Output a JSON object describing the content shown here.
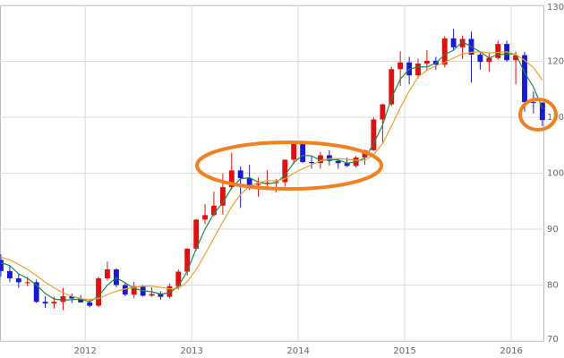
{
  "chart_data": {
    "type": "candlestick",
    "x": [
      2011.208,
      2011.292,
      2011.375,
      2011.458,
      2011.542,
      2011.625,
      2011.708,
      2011.792,
      2011.875,
      2011.958,
      2012.042,
      2012.125,
      2012.208,
      2012.292,
      2012.375,
      2012.458,
      2012.542,
      2012.625,
      2012.708,
      2012.792,
      2012.875,
      2012.958,
      2013.042,
      2013.125,
      2013.208,
      2013.292,
      2013.375,
      2013.458,
      2013.542,
      2013.625,
      2013.708,
      2013.792,
      2013.875,
      2013.958,
      2014.042,
      2014.125,
      2014.208,
      2014.292,
      2014.375,
      2014.458,
      2014.542,
      2014.625,
      2014.708,
      2014.792,
      2014.875,
      2014.958,
      2015.042,
      2015.125,
      2015.208,
      2015.292,
      2015.375,
      2015.458,
      2015.542,
      2015.625,
      2015.708,
      2015.792,
      2015.875,
      2015.958,
      2016.042,
      2016.125,
      2016.208,
      2016.292
    ],
    "open": [
      84.5,
      82.5,
      81.2,
      80.5,
      80.5,
      77.0,
      76.7,
      77.0,
      78.0,
      77.6,
      76.9,
      76.3,
      81.2,
      82.8,
      80.0,
      78.3,
      79.8,
      78.1,
      78.4,
      77.9,
      79.8,
      82.4,
      86.5,
      91.7,
      92.5,
      94.2,
      97.5,
      100.5,
      99.1,
      97.9,
      98.1,
      98.3,
      98.4,
      102.4,
      105.3,
      102.0,
      101.8,
      103.2,
      102.2,
      101.8,
      101.3,
      102.8,
      104.1,
      109.6,
      112.3,
      118.6,
      119.8,
      117.5,
      119.6,
      120.1,
      119.4,
      124.1,
      122.5,
      124.0,
      121.2,
      119.9,
      120.6,
      123.1,
      120.2,
      121.1,
      112.7,
      112.6
    ],
    "high": [
      85.5,
      83.5,
      82.0,
      81.5,
      81.0,
      78.0,
      77.9,
      79.5,
      78.5,
      78.2,
      77.5,
      81.5,
      84.2,
      83.0,
      80.5,
      80.6,
      80.0,
      79.6,
      78.9,
      80.3,
      82.8,
      86.6,
      91.8,
      94.5,
      96.7,
      99.9,
      103.7,
      101.2,
      101.5,
      99.2,
      100.6,
      99.0,
      102.5,
      105.4,
      105.4,
      103.0,
      103.8,
      104.1,
      102.7,
      102.8,
      103.1,
      104.2,
      110.0,
      112.4,
      119.0,
      121.8,
      120.8,
      120.5,
      122.0,
      120.8,
      124.5,
      125.8,
      124.6,
      125.3,
      121.7,
      121.5,
      123.7,
      123.7,
      121.7,
      121.7,
      114.6,
      112.7
    ],
    "low": [
      81.5,
      80.5,
      79.5,
      79.8,
      76.8,
      75.9,
      75.8,
      75.5,
      76.8,
      76.9,
      76.0,
      76.1,
      80.8,
      79.6,
      78.0,
      77.6,
      77.9,
      77.9,
      77.4,
      77.6,
      79.2,
      81.7,
      86.1,
      90.9,
      92.3,
      92.6,
      97.1,
      93.8,
      97.0,
      95.8,
      97.0,
      96.6,
      97.6,
      101.6,
      101.8,
      100.8,
      100.8,
      101.4,
      100.8,
      101.1,
      101.0,
      101.5,
      104.0,
      105.2,
      112.0,
      115.6,
      115.9,
      116.9,
      118.3,
      118.5,
      118.9,
      122.0,
      120.4,
      116.2,
      118.5,
      118.1,
      120.3,
      119.9,
      115.9,
      111.0,
      110.7,
      108.4
    ],
    "close": [
      82.5,
      81.2,
      80.5,
      80.5,
      77.0,
      76.7,
      77.0,
      78.0,
      77.6,
      76.9,
      76.3,
      81.2,
      82.8,
      80.0,
      78.3,
      79.8,
      78.1,
      78.4,
      77.9,
      79.8,
      82.4,
      86.5,
      91.7,
      92.5,
      94.2,
      97.5,
      100.5,
      99.1,
      97.9,
      98.1,
      98.3,
      98.4,
      102.4,
      105.3,
      102.0,
      101.8,
      103.2,
      102.2,
      101.8,
      101.3,
      102.8,
      104.1,
      109.6,
      112.3,
      118.6,
      119.8,
      117.5,
      119.6,
      120.1,
      119.4,
      124.1,
      122.5,
      124.0,
      121.2,
      119.9,
      120.6,
      123.1,
      120.2,
      121.1,
      112.7,
      112.6,
      109.5
    ],
    "up_color": "#e01010",
    "down_color": "#1a1ad0",
    "overlays": [
      {
        "color": "#1e8a4a",
        "values": [
          84,
          83.5,
          82,
          81.2,
          80,
          78.5,
          77.5,
          77.3,
          77.4,
          77.5,
          77,
          78,
          80,
          81.3,
          80.4,
          79.4,
          79,
          78.8,
          78.4,
          78.6,
          79.8,
          82.5,
          86.5,
          90,
          92.8,
          94.7,
          97.4,
          99,
          99.2,
          98.4,
          98.1,
          98.3,
          99.6,
          101.9,
          103.2,
          103.1,
          102.3,
          102.4,
          102.4,
          101.8,
          102,
          102.7,
          105.3,
          108.6,
          113.4,
          116.8,
          118.6,
          119,
          119,
          119.7,
          121.2,
          122,
          123.5,
          122.6,
          121.7,
          120.6,
          121.2,
          121.3,
          121.3,
          118,
          115.4,
          111.6
        ]
      },
      {
        "color": "#f0a028",
        "values": [
          85,
          84.5,
          83.7,
          82.8,
          81.7,
          80.5,
          79.5,
          78.6,
          78.0,
          77.6,
          77.4,
          77.6,
          78.3,
          78.9,
          79.3,
          79.6,
          79.8,
          79.8,
          79.6,
          79.3,
          79.4,
          80.6,
          82.8,
          85.5,
          88.4,
          91.3,
          94,
          96.2,
          97.7,
          98.3,
          98.7,
          98.6,
          99,
          100,
          100.8,
          101.5,
          102.2,
          102.6,
          102.6,
          102.5,
          102.3,
          102.3,
          103.3,
          105.3,
          108.4,
          111.7,
          114.7,
          117.2,
          118.4,
          119.2,
          119.8,
          120.6,
          121.3,
          121.6,
          121.7,
          121.5,
          121.6,
          121.7,
          121.2,
          120.2,
          118.9,
          116.6
        ]
      }
    ],
    "xlim": [
      2011.2,
      2016.31
    ],
    "xticks": [
      2012,
      2013,
      2014,
      2015,
      2016
    ],
    "ylim": [
      70,
      130
    ],
    "yticks": [
      70,
      80,
      90,
      100,
      110,
      120,
      130
    ],
    "grid": true
  }
}
